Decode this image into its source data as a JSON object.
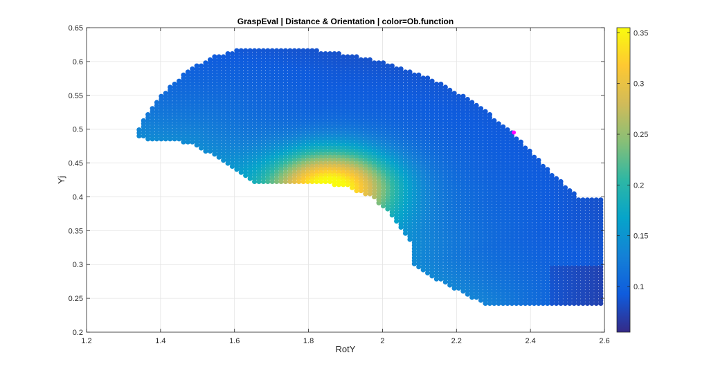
{
  "chart_data": {
    "type": "scatter",
    "title": "GraspEval | Distance & Orientation | color=Ob.function",
    "xlabel": "RotY",
    "ylabel": "Yj",
    "xlim": [
      1.2,
      2.6
    ],
    "ylim": [
      0.2,
      0.65
    ],
    "xticks": [
      "1.2",
      "1.4",
      "1.6",
      "1.8",
      "2",
      "2.2",
      "2.4",
      "2.6"
    ],
    "yticks": [
      "0.2",
      "0.25",
      "0.3",
      "0.35",
      "0.4",
      "0.45",
      "0.5",
      "0.55",
      "0.6",
      "0.65"
    ],
    "grid": true,
    "colormap": "parula",
    "colorbar": {
      "range": [
        0.055,
        0.355
      ],
      "ticks": [
        "0.1",
        "0.15",
        "0.2",
        "0.25",
        "0.3",
        "0.35"
      ]
    },
    "region": {
      "description_points": "filled band of evaluated samples",
      "outer_boundary": [
        [
          1.33,
          0.49
        ],
        [
          1.36,
          0.52
        ],
        [
          1.4,
          0.55
        ],
        [
          1.46,
          0.58
        ],
        [
          1.53,
          0.605
        ],
        [
          1.63,
          0.62
        ],
        [
          1.72,
          0.62
        ],
        [
          1.85,
          0.615
        ],
        [
          2.0,
          0.6
        ],
        [
          2.13,
          0.575
        ],
        [
          2.25,
          0.54
        ],
        [
          2.35,
          0.495
        ],
        [
          2.45,
          0.44
        ],
        [
          2.53,
          0.4
        ],
        [
          2.6,
          0.4
        ]
      ],
      "bottom_right": [
        [
          2.6,
          0.24
        ],
        [
          2.28,
          0.24
        ]
      ],
      "inner_boundary": [
        [
          2.28,
          0.24
        ],
        [
          2.19,
          0.265
        ],
        [
          2.12,
          0.285
        ],
        [
          2.08,
          0.3
        ],
        [
          2.08,
          0.33
        ],
        [
          2.03,
          0.37
        ],
        [
          1.97,
          0.4
        ],
        [
          1.9,
          0.415
        ],
        [
          1.85,
          0.42
        ],
        [
          1.66,
          0.42
        ],
        [
          1.58,
          0.45
        ],
        [
          1.48,
          0.48
        ],
        [
          1.37,
          0.485
        ],
        [
          1.33,
          0.49
        ]
      ],
      "hotspot": {
        "x": 1.86,
        "y": 0.415,
        "value": 0.355
      },
      "min_value": 0.055
    },
    "marker": {
      "x": 2.355,
      "y": 0.495,
      "color": "#ff00ff"
    }
  }
}
